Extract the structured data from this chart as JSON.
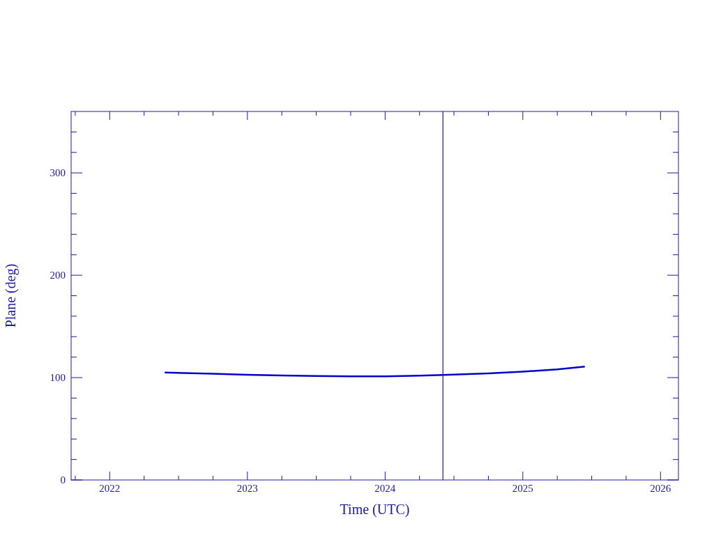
{
  "chart_data": {
    "type": "line",
    "xlabel": "Time (UTC)",
    "ylabel": "Plane (deg)",
    "xlim": [
      2021.72,
      2026.13
    ],
    "ylim": [
      0,
      360
    ],
    "xticks": [
      {
        "value": 2021.75,
        "label": null
      },
      2022,
      {
        "value": 2022.25,
        "label": null
      },
      {
        "value": 2022.5,
        "label": null
      },
      {
        "value": 2022.75,
        "label": null
      },
      2023,
      {
        "value": 2023.25,
        "label": null
      },
      {
        "value": 2023.5,
        "label": null
      },
      {
        "value": 2023.75,
        "label": null
      },
      2024,
      {
        "value": 2024.25,
        "label": null
      },
      {
        "value": 2024.5,
        "label": null
      },
      {
        "value": 2024.75,
        "label": null
      },
      2025,
      {
        "value": 2025.25,
        "label": null
      },
      {
        "value": 2025.5,
        "label": null
      },
      {
        "value": 2025.75,
        "label": null
      },
      2026
    ],
    "yticks": [
      0,
      {
        "value": 20,
        "label": null
      },
      {
        "value": 40,
        "label": null
      },
      {
        "value": 60,
        "label": null
      },
      {
        "value": 80,
        "label": null
      },
      100,
      {
        "value": 120,
        "label": null
      },
      {
        "value": 140,
        "label": null
      },
      {
        "value": 160,
        "label": null
      },
      {
        "value": 180,
        "label": null
      },
      200,
      {
        "value": 220,
        "label": null
      },
      {
        "value": 240,
        "label": null
      },
      {
        "value": 260,
        "label": null
      },
      {
        "value": 280,
        "label": null
      },
      300,
      {
        "value": 320,
        "label": null
      },
      {
        "value": 340,
        "label": null
      }
    ],
    "x": [
      2022.4,
      2022.75,
      2023.0,
      2023.25,
      2023.5,
      2023.75,
      2024.0,
      2024.25,
      2024.42,
      2024.75,
      2025.0,
      2025.25,
      2025.45
    ],
    "series": [
      {
        "color": "#0000cc",
        "values": [
          105.0,
          103.7,
          102.8,
          102.0,
          101.5,
          101.2,
          101.3,
          101.9,
          102.6,
          104.2,
          105.8,
          108.0,
          110.8
        ]
      }
    ],
    "ref_lines": [
      {
        "axis": "x",
        "value": 2024.42,
        "color": "#1a1aa0"
      }
    ],
    "grid": false,
    "marker": "none",
    "line_style": "solid"
  }
}
